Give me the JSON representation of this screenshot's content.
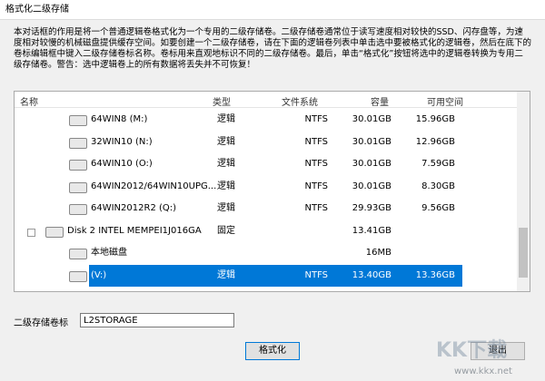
{
  "window": {
    "title": "格式化二级存储"
  },
  "description": "本对话框的作用是将一个普通逻辑卷格式化为一个专用的二级存储卷。二级存储卷通常位于读写速度相对较快的SSD、闪存盘等，为速度相对较慢的机械磁盘提供缓存空间。如要创建一个二级存储卷，请在下面的逻辑卷列表中单击选中要被格式化的逻辑卷，然后在底下的卷标编辑框中键入二级存储卷标名称。卷标用来直观地标识不同的二级存储卷。最后，单击“格式化”按钮将选中的逻辑卷转换为专用二级存储卷。警告：选中逻辑卷上的所有数据将丢失并不可恢复！",
  "table": {
    "headers": [
      "名称",
      "类型",
      "文件系统",
      "容量",
      "可用空间"
    ],
    "rows": [
      {
        "name": "64WIN8 (M:)",
        "type": "逻辑",
        "fs": "NTFS",
        "size": "30.01GB",
        "free": "15.96GB"
      },
      {
        "name": "32WIN10 (N:)",
        "type": "逻辑",
        "fs": "NTFS",
        "size": "30.01GB",
        "free": "12.96GB"
      },
      {
        "name": "64WIN10 (O:)",
        "type": "逻辑",
        "fs": "NTFS",
        "size": "30.01GB",
        "free": "7.59GB"
      },
      {
        "name": "64WIN2012/64WIN10UPG...",
        "type": "逻辑",
        "fs": "NTFS",
        "size": "30.01GB",
        "free": "8.30GB"
      },
      {
        "name": "64WIN2012R2 (Q:)",
        "type": "逻辑",
        "fs": "NTFS",
        "size": "29.93GB",
        "free": "9.56GB"
      },
      {
        "name": "Disk 2 INTEL MEMPEI1J016GA",
        "type": "固定",
        "size": "13.41GB"
      },
      {
        "name": "本地磁盘",
        "size": "16MB"
      },
      {
        "name": "(V:)",
        "type": "逻辑",
        "fs": "NTFS",
        "size": "13.40GB",
        "free": "13.36GB"
      }
    ]
  },
  "label_field": {
    "label": "二级存储卷标",
    "value": "L2STORAGE"
  },
  "buttons": {
    "format": "格式化",
    "exit": "退出"
  },
  "watermark": {
    "brand": "KK下载",
    "url": "www.kkx.net"
  }
}
